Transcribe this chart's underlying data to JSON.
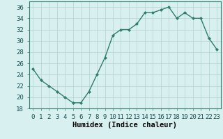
{
  "x": [
    0,
    1,
    2,
    3,
    4,
    5,
    6,
    7,
    8,
    9,
    10,
    11,
    12,
    13,
    14,
    15,
    16,
    17,
    18,
    19,
    20,
    21,
    22,
    23
  ],
  "y": [
    25,
    23,
    22,
    21,
    20,
    19,
    19,
    21,
    24,
    27,
    31,
    32,
    32,
    33,
    35,
    35,
    35.5,
    36,
    34,
    35,
    34,
    34,
    30.5,
    28.5
  ],
  "line_color": "#2e7d6e",
  "marker": "D",
  "marker_size": 2.0,
  "bg_color": "#d8f0f0",
  "grid_color": "#b8d8d8",
  "xlabel": "Humidex (Indice chaleur)",
  "ylim": [
    18,
    37
  ],
  "yticks": [
    18,
    20,
    22,
    24,
    26,
    28,
    30,
    32,
    34,
    36
  ],
  "xlim": [
    -0.5,
    23.5
  ],
  "xlabel_fontsize": 7.5,
  "tick_fontsize": 6.5,
  "line_width": 1.0
}
